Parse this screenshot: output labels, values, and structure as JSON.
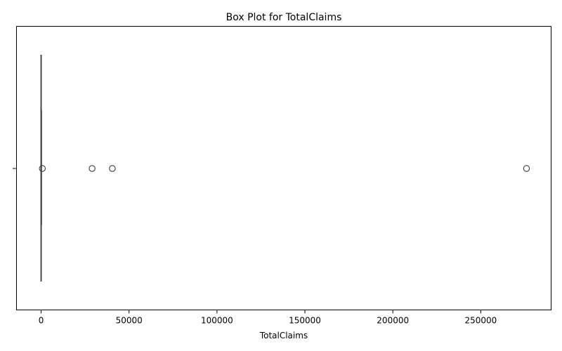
{
  "chart_data": {
    "type": "box",
    "title": "Box Plot for TotalClaims",
    "xlabel": "TotalClaims",
    "ylabel": "",
    "orientation": "horizontal",
    "xlim": [
      -14000,
      290000
    ],
    "xticks": [
      0,
      50000,
      100000,
      150000,
      200000,
      250000
    ],
    "xtick_labels": [
      "0",
      "50000",
      "100000",
      "150000",
      "200000",
      "250000"
    ],
    "box": {
      "whisker_low": 0,
      "q1": 0,
      "median": 0,
      "q3": 0,
      "whisker_high": 0
    },
    "outliers": [
      700,
      29000,
      40500,
      276000
    ],
    "color": "#3a3a3a",
    "grid": false,
    "legend": "none"
  }
}
